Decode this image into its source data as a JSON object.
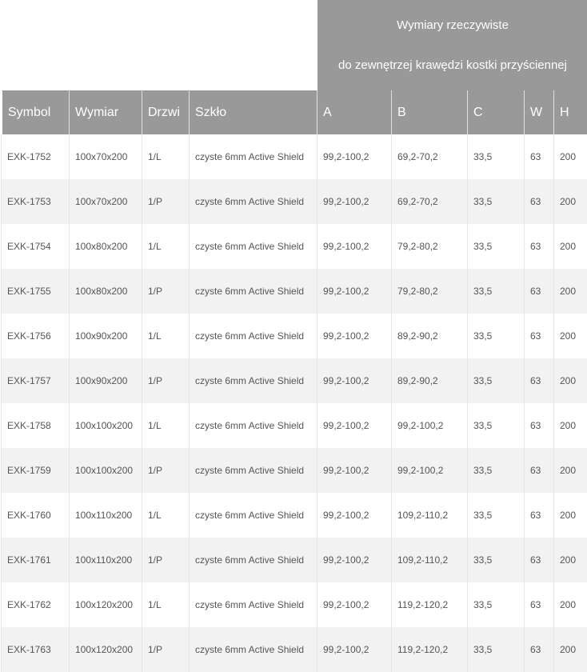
{
  "group_header": {
    "line1": "Wymiary rzeczywiste",
    "line2": "do zewnętrzej krawędzi kostki przyściennej"
  },
  "columns": [
    "Symbol",
    "Wymiar",
    "Drzwi",
    "Szkło",
    "A",
    "B",
    "C",
    "W",
    "H"
  ],
  "rows": [
    [
      "EXK-1752",
      "100x70x200",
      "1/L",
      "czyste 6mm Active Shield",
      "99,2-100,2",
      "69,2-70,2",
      "33,5",
      "63",
      "200"
    ],
    [
      "EXK-1753",
      "100x70x200",
      "1/P",
      "czyste 6mm Active Shield",
      "99,2-100,2",
      "69,2-70,2",
      "33,5",
      "63",
      "200"
    ],
    [
      "EXK-1754",
      "100x80x200",
      "1/L",
      "czyste 6mm Active Shield",
      "99,2-100,2",
      "79,2-80,2",
      "33,5",
      "63",
      "200"
    ],
    [
      "EXK-1755",
      "100x80x200",
      "1/P",
      "czyste 6mm Active Shield",
      "99,2-100,2",
      "79,2-80,2",
      "33,5",
      "63",
      "200"
    ],
    [
      "EXK-1756",
      "100x90x200",
      "1/L",
      "czyste 6mm Active Shield",
      "99,2-100,2",
      "89,2-90,2",
      "33,5",
      "63",
      "200"
    ],
    [
      "EXK-1757",
      "100x90x200",
      "1/P",
      "czyste 6mm Active Shield",
      "99,2-100,2",
      "89,2-90,2",
      "33,5",
      "63",
      "200"
    ],
    [
      "EXK-1758",
      "100x100x200",
      "1/L",
      "czyste 6mm Active Shield",
      "99,2-100,2",
      "99,2-100,2",
      "33,5",
      "63",
      "200"
    ],
    [
      "EXK-1759",
      "100x100x200",
      "1/P",
      "czyste 6mm Active Shield",
      "99,2-100,2",
      "99,2-100,2",
      "33,5",
      "63",
      "200"
    ],
    [
      "EXK-1760",
      "100x110x200",
      "1/L",
      "czyste 6mm Active Shield",
      "99,2-100,2",
      "109,2-110,2",
      "33,5",
      "63",
      "200"
    ],
    [
      "EXK-1761",
      "100x110x200",
      "1/P",
      "czyste 6mm Active Shield",
      "99,2-100,2",
      "109,2-110,2",
      "33,5",
      "63",
      "200"
    ],
    [
      "EXK-1762",
      "100x120x200",
      "1/L",
      "czyste 6mm Active Shield",
      "99,2-100,2",
      "119,2-120,2",
      "33,5",
      "63",
      "200"
    ],
    [
      "EXK-1763",
      "100x120x200",
      "1/P",
      "czyste 6mm Active Shield",
      "99,2-100,2",
      "119,2-120,2",
      "33,5",
      "63",
      "200"
    ]
  ]
}
